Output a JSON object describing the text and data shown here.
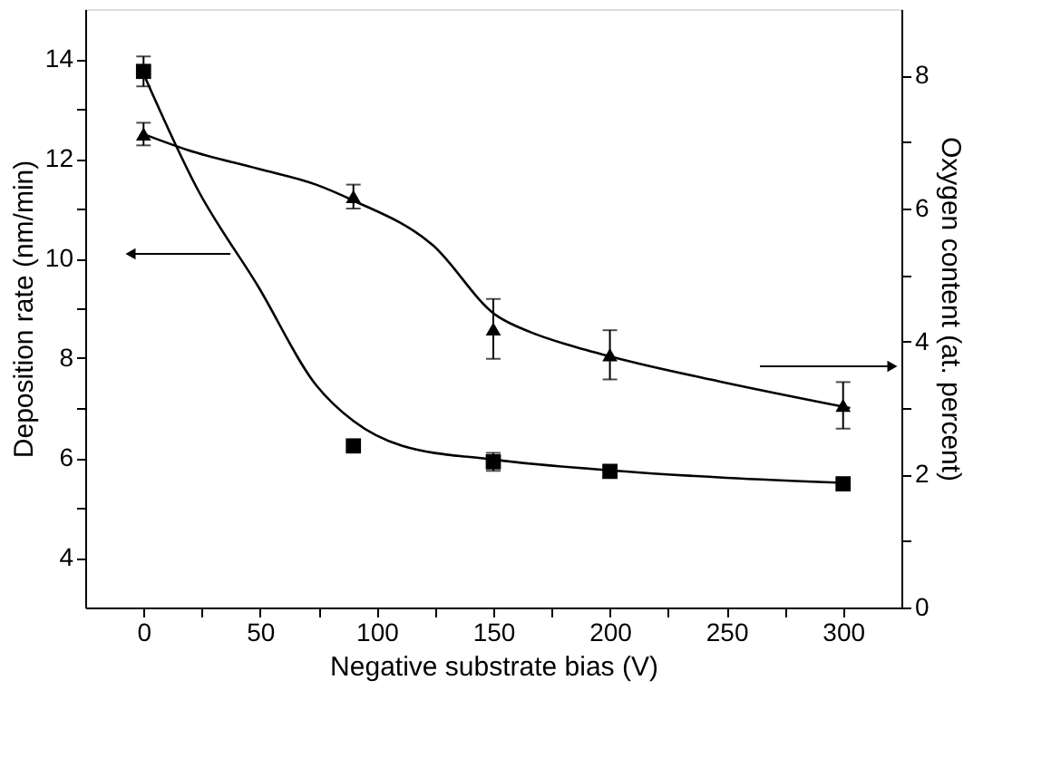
{
  "chart_data": {
    "type": "scatter",
    "xlabel": "Negative substrate bias (V)",
    "ylabel": "Deposition rate (nm/min)",
    "y2label": "Oxygen content (at. percent)",
    "xlim": [
      -25,
      325
    ],
    "xticks": [
      0,
      {
        "value": 25,
        "label": null
      },
      50,
      {
        "value": 75,
        "label": null
      },
      100,
      {
        "value": 125,
        "label": null
      },
      150,
      {
        "value": 175,
        "label": null
      },
      200,
      {
        "value": 225,
        "label": null
      },
      250,
      {
        "value": 275,
        "label": null
      },
      300
    ],
    "ylim": [
      3,
      15
    ],
    "yticks": [
      4,
      {
        "value": 5,
        "label": null
      },
      6,
      {
        "value": 7,
        "label": null
      },
      8,
      {
        "value": 9,
        "label": null
      },
      10,
      {
        "value": 11,
        "label": null
      },
      12,
      {
        "value": 13,
        "label": null
      },
      14
    ],
    "y2lim": [
      0,
      9
    ],
    "y2ticks": [
      0,
      {
        "value": 1,
        "label": null
      },
      2,
      {
        "value": 3,
        "label": null
      },
      4,
      {
        "value": 5,
        "label": null
      },
      6,
      {
        "value": 7,
        "label": null
      },
      8
    ],
    "x": [
      0,
      90,
      150,
      200,
      300
    ],
    "series": [
      {
        "marker": "square",
        "color": "#000000",
        "values": [
          13.75,
          6.24,
          5.92,
          5.73,
          5.48
        ],
        "errors": [
          0.3,
          null,
          0.18,
          0.1,
          null
        ]
      },
      {
        "marker": "triangle",
        "color": "#000000",
        "axis": "y2",
        "values": [
          7.12,
          6.18,
          4.19,
          3.8,
          3.04
        ],
        "errors": [
          0.17,
          0.18,
          0.45,
          0.37,
          0.35
        ]
      },
      {
        "type": "line",
        "color": "#000000",
        "x": [
          0,
          23,
          49,
          74,
          90,
          111,
          149,
          200,
          250,
          300
        ],
        "values": [
          13.7,
          11.4,
          9.45,
          7.46,
          6.74,
          6.24,
          5.97,
          5.75,
          5.6,
          5.5
        ]
      },
      {
        "type": "line",
        "color": "#000000",
        "axis": "y2",
        "x": [
          0,
          19,
          49,
          74,
          90,
          124,
          151,
          166,
          184,
          204,
          247,
          303
        ],
        "values": [
          7.12,
          6.88,
          6.6,
          6.36,
          6.12,
          5.45,
          4.4,
          4.14,
          3.93,
          3.74,
          3.4,
          3.0
        ]
      }
    ],
    "grid": false
  }
}
